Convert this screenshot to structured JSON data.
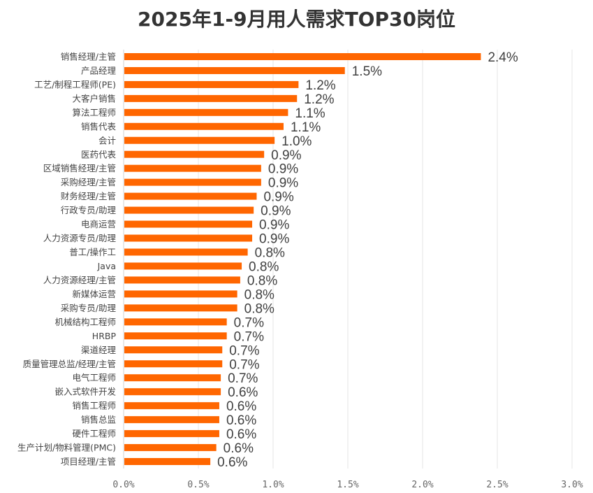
{
  "chart_data": {
    "type": "bar",
    "orientation": "horizontal",
    "title": "2025年1-9月用人需求TOP30岗位",
    "xlabel": "",
    "ylabel": "",
    "xlim": [
      0,
      3.0
    ],
    "x_ticks": [
      "0.0%",
      "0.5%",
      "1.0%",
      "1.5%",
      "2.0%",
      "2.5%",
      "3.0%"
    ],
    "grid": "vertical",
    "bar_color": "#FF6600",
    "categories": [
      "销售经理/主管",
      "产品经理",
      "工艺/制程工程师(PE)",
      "大客户销售",
      "算法工程师",
      "销售代表",
      "会计",
      "医药代表",
      "区域销售经理/主管",
      "采购经理/主管",
      "财务经理/主管",
      "行政专员/助理",
      "电商运营",
      "人力资源专员/助理",
      "普工/操作工",
      "Java",
      "人力资源经理/主管",
      "新媒体运营",
      "采购专员/助理",
      "机械结构工程师",
      "HRBP",
      "渠道经理",
      "质量管理总监/经理/主管",
      "电气工程师",
      "嵌入式软件开发",
      "销售工程师",
      "销售总监",
      "硬件工程师",
      "生产计划/物料管理(PMC)",
      "项目经理/主管"
    ],
    "values": [
      2.39,
      1.48,
      1.17,
      1.16,
      1.1,
      1.07,
      1.01,
      0.94,
      0.92,
      0.92,
      0.89,
      0.87,
      0.86,
      0.86,
      0.83,
      0.79,
      0.78,
      0.76,
      0.76,
      0.69,
      0.69,
      0.66,
      0.66,
      0.65,
      0.65,
      0.64,
      0.64,
      0.64,
      0.62,
      0.58
    ],
    "data_labels": [
      "2.4%",
      "1.5%",
      "1.2%",
      "1.2%",
      "1.1%",
      "1.1%",
      "1.0%",
      "0.9%",
      "0.9%",
      "0.9%",
      "0.9%",
      "0.9%",
      "0.9%",
      "0.9%",
      "0.8%",
      "0.8%",
      "0.8%",
      "0.8%",
      "0.8%",
      "0.7%",
      "0.7%",
      "0.7%",
      "0.7%",
      "0.7%",
      "0.6%",
      "0.6%",
      "0.6%",
      "0.6%",
      "0.6%",
      "0.6%"
    ]
  }
}
